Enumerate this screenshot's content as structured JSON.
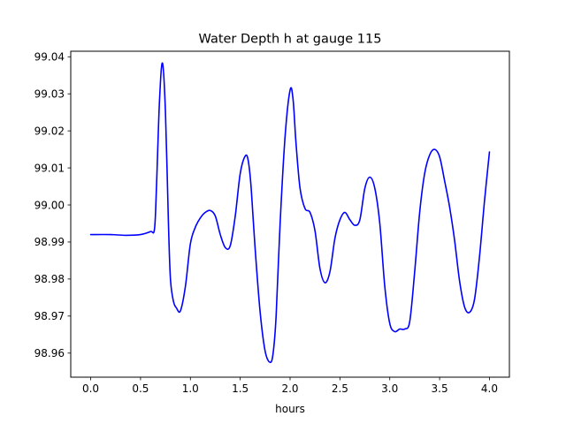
{
  "chart_data": {
    "type": "line",
    "title": "Water Depth h at gauge 115",
    "xlabel": "hours",
    "ylabel": "",
    "xlim": [
      -0.2,
      4.2
    ],
    "ylim": [
      98.9535,
      99.0415
    ],
    "xticks": [
      0.0,
      0.5,
      1.0,
      1.5,
      2.0,
      2.5,
      3.0,
      3.5,
      4.0
    ],
    "xtick_labels": [
      "0.0",
      "0.5",
      "1.0",
      "1.5",
      "2.0",
      "2.5",
      "3.0",
      "3.5",
      "4.0"
    ],
    "yticks": [
      98.96,
      98.97,
      98.98,
      98.99,
      99.0,
      99.01,
      99.02,
      99.03,
      99.04
    ],
    "ytick_labels": [
      "98.96",
      "98.97",
      "98.98",
      "98.99",
      "99.00",
      "99.01",
      "99.02",
      "99.03",
      "99.04"
    ],
    "grid": false,
    "series": [
      {
        "color": "#0000ff",
        "x": [
          0.0,
          0.2,
          0.35,
          0.5,
          0.6,
          0.64,
          0.66,
          0.69,
          0.72,
          0.75,
          0.78,
          0.8,
          0.83,
          0.86,
          0.9,
          0.95,
          1.0,
          1.05,
          1.1,
          1.15,
          1.2,
          1.25,
          1.3,
          1.35,
          1.4,
          1.45,
          1.5,
          1.55,
          1.58,
          1.61,
          1.65,
          1.7,
          1.75,
          1.8,
          1.83,
          1.86,
          1.9,
          1.95,
          2.0,
          2.03,
          2.06,
          2.1,
          2.15,
          2.2,
          2.25,
          2.3,
          2.35,
          2.4,
          2.45,
          2.5,
          2.55,
          2.6,
          2.65,
          2.7,
          2.75,
          2.8,
          2.85,
          2.9,
          2.95,
          3.0,
          3.05,
          3.1,
          3.15,
          3.2,
          3.25,
          3.3,
          3.35,
          3.4,
          3.45,
          3.5,
          3.55,
          3.6,
          3.65,
          3.7,
          3.75,
          3.8,
          3.85,
          3.9,
          3.95,
          4.0
        ],
        "y": [
          98.992,
          98.992,
          98.9918,
          98.992,
          98.9928,
          98.9935,
          99.005,
          99.028,
          99.0383,
          99.025,
          98.995,
          98.98,
          98.974,
          98.9722,
          98.9714,
          98.978,
          98.9895,
          98.994,
          98.9965,
          98.998,
          98.9985,
          98.997,
          98.992,
          98.9885,
          98.989,
          98.997,
          99.0085,
          99.0132,
          99.012,
          99.0045,
          98.988,
          98.971,
          98.9605,
          98.9575,
          98.96,
          98.97,
          98.995,
          99.0185,
          99.031,
          99.0285,
          99.0165,
          99.0045,
          98.999,
          98.998,
          98.993,
          98.9828,
          98.979,
          98.982,
          98.991,
          98.996,
          98.998,
          98.996,
          98.9945,
          98.996,
          99.0045,
          99.0075,
          99.0045,
          98.995,
          98.978,
          98.968,
          98.9658,
          98.9665,
          98.9665,
          98.9685,
          98.982,
          98.998,
          99.0085,
          99.0135,
          99.015,
          99.013,
          99.0065,
          98.9995,
          98.9905,
          98.9795,
          98.9725,
          98.971,
          98.9745,
          98.986,
          99.001,
          99.0143
        ]
      }
    ]
  }
}
